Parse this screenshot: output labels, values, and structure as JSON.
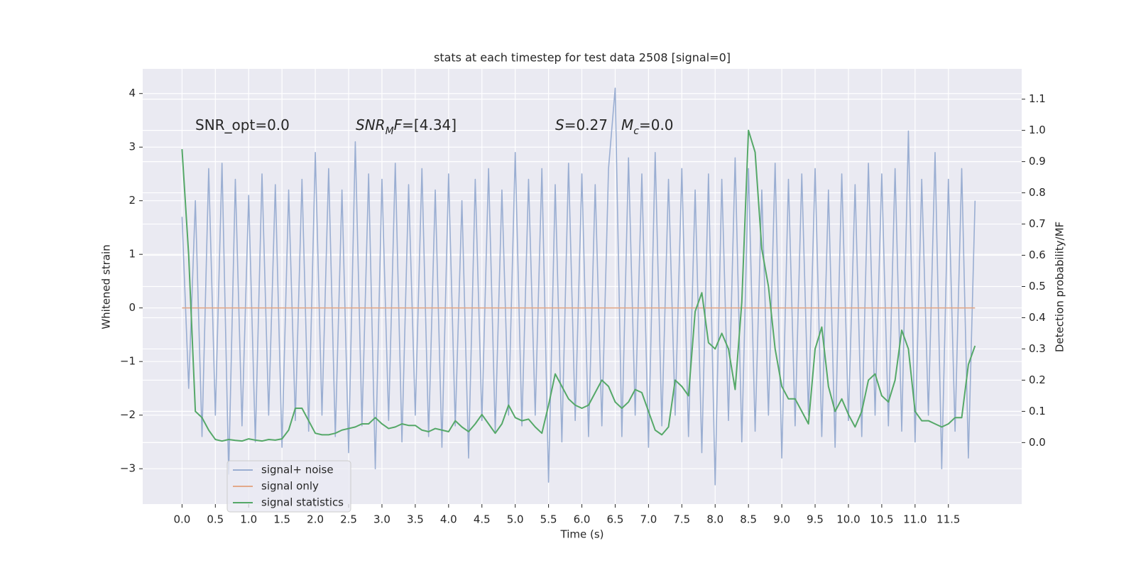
{
  "chart_data": {
    "type": "line",
    "title": "stats at each timestep for test data 2508 [signal=0]",
    "x_label": "Time (s)",
    "y_label": "Whitened strain",
    "y2_label": "Detection probability/MF",
    "annotations": [
      {
        "parts": [
          {
            "text": "SNR_opt=0.0"
          }
        ]
      },
      {
        "parts": [
          {
            "text": "SNR",
            "style": "italic"
          },
          {
            "text": "M",
            "style": "italic-sub"
          },
          {
            "text": "F",
            "style": "italic"
          },
          {
            "text": "=[4.34]"
          }
        ]
      },
      {
        "parts": [
          {
            "text": "S",
            "style": "italic"
          },
          {
            "text": "=0.27"
          }
        ]
      },
      {
        "parts": [
          {
            "text": "M",
            "style": "italic"
          },
          {
            "text": "c",
            "style": "italic-sub"
          },
          {
            "text": "=0.0"
          }
        ]
      }
    ],
    "x": [
      0,
      0.1,
      0.2,
      0.3,
      0.4,
      0.5,
      0.6,
      0.7,
      0.8,
      0.9,
      1.0,
      1.1,
      1.2,
      1.3,
      1.4,
      1.5,
      1.6,
      1.7,
      1.8,
      1.9,
      2.0,
      2.1,
      2.2,
      2.3,
      2.4,
      2.5,
      2.6,
      2.7,
      2.8,
      2.9,
      3.0,
      3.1,
      3.2,
      3.3,
      3.4,
      3.5,
      3.6,
      3.7,
      3.8,
      3.9,
      4.0,
      4.1,
      4.2,
      4.3,
      4.4,
      4.5,
      4.6,
      4.7,
      4.8,
      4.9,
      5.0,
      5.1,
      5.2,
      5.3,
      5.4,
      5.5,
      5.6,
      5.7,
      5.8,
      5.9,
      6.0,
      6.1,
      6.2,
      6.3,
      6.4,
      6.5,
      6.6,
      6.7,
      6.8,
      6.9,
      7.0,
      7.1,
      7.2,
      7.3,
      7.4,
      7.5,
      7.6,
      7.7,
      7.8,
      7.9,
      8.0,
      8.1,
      8.2,
      8.3,
      8.4,
      8.5,
      8.6,
      8.7,
      8.8,
      8.9,
      9.0,
      9.1,
      9.2,
      9.3,
      9.4,
      9.5,
      9.6,
      9.7,
      9.8,
      9.9,
      10.0,
      10.1,
      10.2,
      10.3,
      10.4,
      10.5,
      10.6,
      10.7,
      10.8,
      10.9,
      11.0,
      11.1,
      11.2,
      11.3,
      11.4,
      11.5,
      11.6,
      11.7,
      11.8,
      11.9
    ],
    "series": [
      {
        "name": "signal+ noise",
        "color": "#9aaed2",
        "values": [
          1.7,
          -1.5,
          2.0,
          -2.4,
          2.6,
          -2.0,
          2.7,
          -3.1,
          2.4,
          -2.2,
          2.1,
          -2.5,
          2.5,
          -2.0,
          2.3,
          -2.6,
          2.2,
          -2.1,
          2.4,
          -2.3,
          2.9,
          -2.0,
          2.6,
          -2.4,
          2.2,
          -2.7,
          3.1,
          -2.2,
          2.5,
          -3.0,
          2.4,
          -2.1,
          2.7,
          -2.5,
          2.3,
          -2.0,
          2.6,
          -2.4,
          2.2,
          -2.6,
          2.5,
          -2.2,
          2.0,
          -2.8,
          2.4,
          -2.1,
          2.6,
          -2.3,
          2.2,
          -2.0,
          2.9,
          -2.2,
          2.4,
          -2.0,
          2.6,
          -3.25,
          2.3,
          -2.5,
          2.7,
          -2.1,
          2.5,
          -2.4,
          2.3,
          -2.2,
          2.6,
          4.1,
          -2.4,
          2.8,
          -2.0,
          2.5,
          -2.6,
          2.9,
          -2.2,
          2.4,
          -2.0,
          2.6,
          -2.4,
          2.2,
          -2.7,
          2.5,
          -3.3,
          2.4,
          -2.1,
          2.8,
          -2.5,
          2.6,
          -2.3,
          2.2,
          -2.0,
          2.7,
          -2.8,
          2.4,
          -2.2,
          2.5,
          -2.0,
          2.6,
          -2.4,
          2.2,
          -2.6,
          2.5,
          -2.1,
          2.3,
          -2.4,
          2.7,
          -2.0,
          2.5,
          -2.2,
          2.6,
          -2.3,
          3.3,
          -2.5,
          2.4,
          -2.0,
          2.9,
          -3.0,
          2.4,
          -2.3,
          2.6,
          -2.8,
          2.0
        ]
      },
      {
        "name": "signal only",
        "color": "#e3a98a",
        "values": [
          0,
          0,
          0,
          0,
          0,
          0,
          0,
          0,
          0,
          0,
          0,
          0,
          0,
          0,
          0,
          0,
          0,
          0,
          0,
          0,
          0,
          0,
          0,
          0,
          0,
          0,
          0,
          0,
          0,
          0,
          0,
          0,
          0,
          0,
          0,
          0,
          0,
          0,
          0,
          0,
          0,
          0,
          0,
          0,
          0,
          0,
          0,
          0,
          0,
          0,
          0,
          0,
          0,
          0,
          0,
          0,
          0,
          0,
          0,
          0,
          0,
          0,
          0,
          0,
          0,
          0,
          0,
          0,
          0,
          0,
          0,
          0,
          0,
          0,
          0,
          0,
          0,
          0,
          0,
          0,
          0,
          0,
          0,
          0,
          0,
          0,
          0,
          0,
          0,
          0,
          0,
          0,
          0,
          0,
          0,
          0,
          0,
          0,
          0,
          0,
          0,
          0,
          0,
          0,
          0,
          0,
          0,
          0,
          0,
          0,
          0,
          0,
          0,
          0,
          0,
          0,
          0,
          0,
          0,
          0
        ]
      },
      {
        "name": "signal statistics",
        "color": "#55a868",
        "axis": "y2",
        "values": [
          0.94,
          0.6,
          0.1,
          0.08,
          0.04,
          0.01,
          0.005,
          0.01,
          0.007,
          0.005,
          0.012,
          0.008,
          0.005,
          0.01,
          0.008,
          0.012,
          0.04,
          0.11,
          0.11,
          0.07,
          0.03,
          0.025,
          0.025,
          0.03,
          0.04,
          0.045,
          0.05,
          0.06,
          0.06,
          0.08,
          0.06,
          0.045,
          0.05,
          0.06,
          0.055,
          0.055,
          0.04,
          0.035,
          0.045,
          0.04,
          0.035,
          0.07,
          0.05,
          0.035,
          0.06,
          0.09,
          0.06,
          0.03,
          0.06,
          0.12,
          0.08,
          0.07,
          0.075,
          0.05,
          0.03,
          0.12,
          0.22,
          0.18,
          0.14,
          0.12,
          0.11,
          0.12,
          0.16,
          0.2,
          0.18,
          0.13,
          0.11,
          0.13,
          0.17,
          0.16,
          0.1,
          0.04,
          0.025,
          0.05,
          0.2,
          0.18,
          0.15,
          0.42,
          0.48,
          0.32,
          0.3,
          0.35,
          0.3,
          0.17,
          0.45,
          1.0,
          0.93,
          0.62,
          0.5,
          0.3,
          0.18,
          0.14,
          0.14,
          0.1,
          0.06,
          0.3,
          0.37,
          0.18,
          0.1,
          0.14,
          0.09,
          0.05,
          0.1,
          0.2,
          0.22,
          0.15,
          0.13,
          0.2,
          0.36,
          0.3,
          0.1,
          0.07,
          0.07,
          0.06,
          0.05,
          0.06,
          0.08,
          0.08,
          0.25,
          0.31
        ]
      }
    ],
    "xlim": [
      -0.59,
      12.6
    ],
    "xticks": [
      {
        "value": 0,
        "label": "0.0"
      },
      0.5,
      {
        "value": 1,
        "label": "1.0"
      },
      1.5,
      {
        "value": 2,
        "label": "2.0"
      },
      2.5,
      {
        "value": 3,
        "label": "3.0"
      },
      3.5,
      {
        "value": 4,
        "label": "4.0"
      },
      4.5,
      {
        "value": 5,
        "label": "5.0"
      },
      5.5,
      {
        "value": 6,
        "label": "6.0"
      },
      6.5,
      {
        "value": 7,
        "label": "7.0"
      },
      7.5,
      {
        "value": 8,
        "label": "8.0"
      },
      8.5,
      {
        "value": 9,
        "label": "9.0"
      },
      9.5,
      {
        "value": 10,
        "label": "10.0"
      },
      10.5,
      {
        "value": 11,
        "label": "11.0"
      },
      11.5
    ],
    "ylim": [
      -3.66,
      4.46
    ],
    "yticks": [
      {
        "value": -3,
        "label": "−3"
      },
      {
        "value": -2,
        "label": "−2"
      },
      {
        "value": -1,
        "label": "−1"
      },
      0,
      1,
      2,
      3,
      4
    ],
    "y2lim": [
      -0.197,
      1.197
    ],
    "y2ticks": [
      {
        "value": 0,
        "label": "0.0"
      },
      0.1,
      0.2,
      0.3,
      0.4,
      0.5,
      0.6,
      0.7,
      0.8,
      0.9,
      {
        "value": 1,
        "label": "1.0"
      },
      1.1
    ],
    "grid": true,
    "legend": "lower left"
  }
}
